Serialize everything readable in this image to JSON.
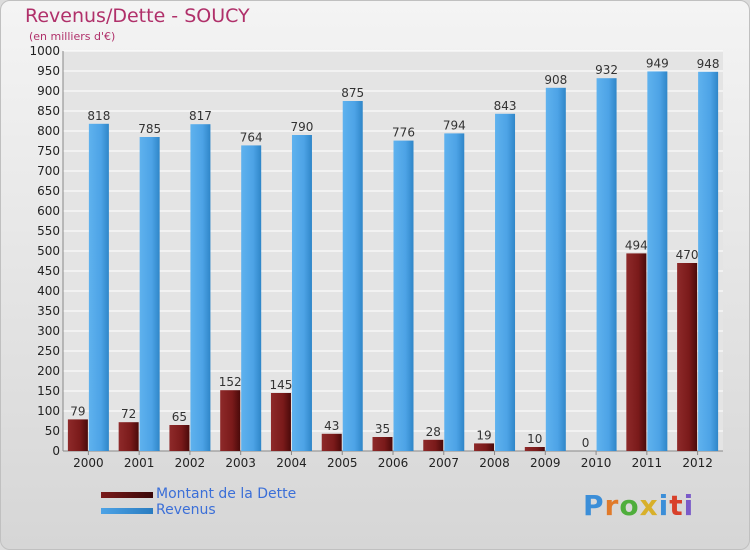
{
  "header": {
    "title": "Revenus/Dette - SOUCY",
    "subtitle": "(en milliers d'€)"
  },
  "colors": {
    "title": "#b0306a",
    "debt": "#7a1a1a",
    "revenue": "#4da3e6",
    "legend_text": "#3b6fd8"
  },
  "legend": {
    "debt_label": "Montant de la Dette",
    "revenue_label": "Revenus"
  },
  "logo": {
    "text": "Proxiti",
    "letter_colors": [
      "#3b8ed8",
      "#e07a2a",
      "#4fae3c",
      "#d8b02a",
      "#3b8ed8",
      "#d8402a",
      "#7a5ac8"
    ]
  },
  "chart_data": {
    "type": "bar",
    "title": "Revenus/Dette - SOUCY",
    "ylabel": "(en milliers d'€)",
    "xlabel": "",
    "ylim": [
      0,
      1000
    ],
    "ytick_step": 50,
    "grid": true,
    "legend_position": "bottom-left",
    "categories": [
      "2000",
      "2001",
      "2002",
      "2003",
      "2004",
      "2005",
      "2006",
      "2007",
      "2008",
      "2009",
      "2010",
      "2011",
      "2012"
    ],
    "series": [
      {
        "name": "Montant de la Dette",
        "values": [
          79,
          72,
          65,
          152,
          145,
          43,
          35,
          28,
          19,
          10,
          0,
          494,
          470
        ]
      },
      {
        "name": "Revenus",
        "values": [
          818,
          785,
          817,
          764,
          790,
          875,
          776,
          794,
          843,
          908,
          932,
          949,
          948
        ]
      }
    ]
  }
}
